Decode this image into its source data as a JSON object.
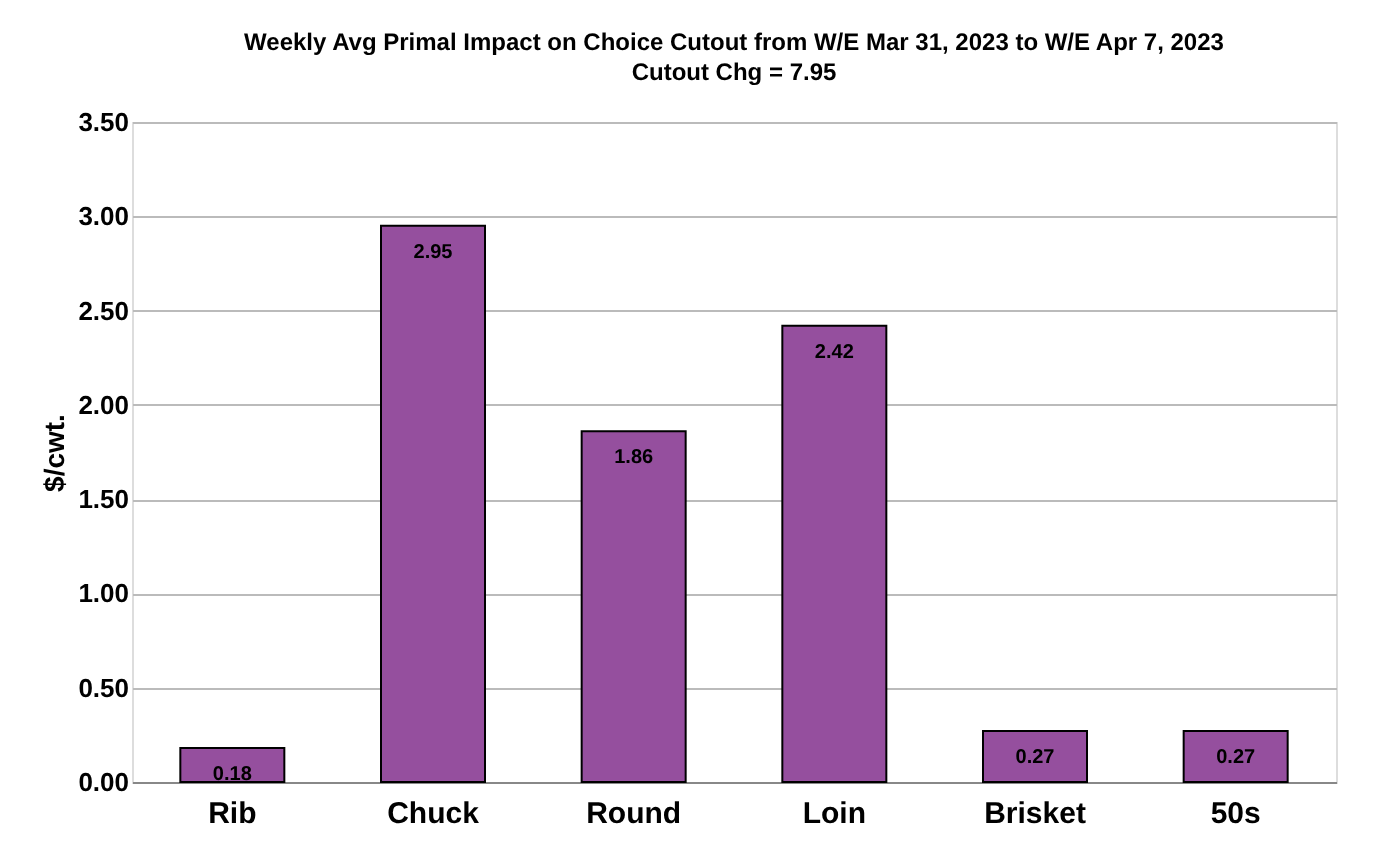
{
  "chart_data": {
    "type": "bar",
    "title": "Weekly Avg Primal Impact on Choice Cutout from W/E Mar 31, 2023 to W/E Apr 7, 2023",
    "subtitle": "Cutout Chg = 7.95",
    "ylabel": "$/cwt.",
    "categories": [
      "Rib",
      "Chuck",
      "Round",
      "Loin",
      "Brisket",
      "50s"
    ],
    "values": [
      0.18,
      2.95,
      1.86,
      2.42,
      0.27,
      0.27
    ],
    "color": "#954f9e",
    "ylim": [
      0,
      3.5
    ],
    "yticks": [
      {
        "value": 0,
        "label": "0.00"
      },
      {
        "value": 0.5,
        "label": "0.50"
      },
      {
        "value": 1,
        "label": "1.00"
      },
      {
        "value": 1.5,
        "label": "1.50"
      },
      {
        "value": 2,
        "label": "2.00"
      },
      {
        "value": 2.5,
        "label": "2.50"
      },
      {
        "value": 3,
        "label": "3.00"
      },
      {
        "value": 3.5,
        "label": "3.50"
      }
    ],
    "grid": "y",
    "data_labels": true
  }
}
